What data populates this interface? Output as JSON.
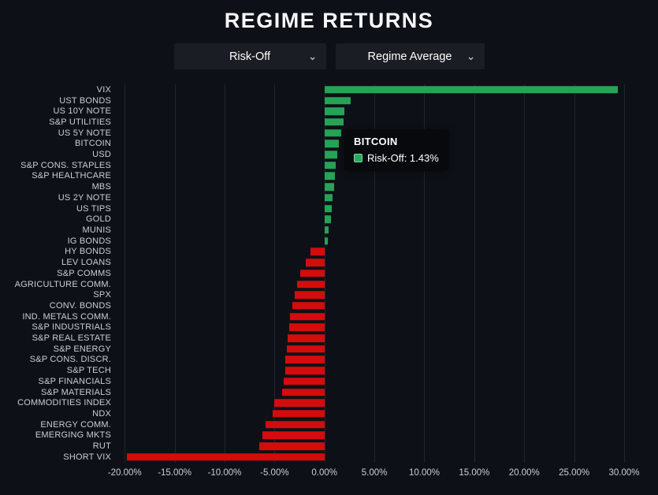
{
  "header": {
    "title": "REGIME RETURNS"
  },
  "controls": {
    "regime_dropdown": {
      "value": "Risk-Off"
    },
    "metric_dropdown": {
      "value": "Regime Average"
    }
  },
  "tooltip": {
    "title": "BITCOIN",
    "text": "Risk-Off: 1.43%"
  },
  "colors": {
    "background": "#0d1117",
    "positive_bar": "#26a356",
    "negative_bar": "#d40c0c",
    "gridline": "#21252c",
    "axis_text": "#c9ced6",
    "tooltip_swatch": "#2aa85c",
    "tooltip_swatch_border": "#7cd9a3"
  },
  "chart_data": {
    "type": "bar",
    "orientation": "horizontal",
    "title": "REGIME RETURNS",
    "series_name": "Risk-Off",
    "xlabel": "",
    "ylabel": "",
    "grid": true,
    "xlim": [
      -20.65,
      33.0
    ],
    "highlighted_category": "BITCOIN",
    "highlighted_value_label": "1.43%",
    "categories": [
      "VIX",
      "UST BONDS",
      "US 10Y NOTE",
      "S&P UTILITIES",
      "US 5Y NOTE",
      "BITCOIN",
      "USD",
      "S&P CONS. STAPLES",
      "S&P HEALTHCARE",
      "MBS",
      "US 2Y NOTE",
      "US TIPS",
      "GOLD",
      "MUNIS",
      "IG BONDS",
      "HY BONDS",
      "LEV LOANS",
      "S&P COMMS",
      "AGRICULTURE COMM.",
      "SPX",
      "CONV. BONDS",
      "IND. METALS COMM.",
      "S&P INDUSTRIALS",
      "S&P REAL ESTATE",
      "S&P ENERGY",
      "S&P CONS. DISCR.",
      "S&P TECH",
      "S&P FINANCIALS",
      "S&P MATERIALS",
      "COMMODITIES INDEX",
      "NDX",
      "ENERGY COMM.",
      "EMERGING MKTS",
      "RUT",
      "SHORT VIX"
    ],
    "values": [
      29.4,
      2.6,
      2.0,
      1.9,
      1.7,
      1.43,
      1.25,
      1.12,
      1.05,
      0.95,
      0.85,
      0.72,
      0.62,
      0.45,
      0.35,
      -1.4,
      -1.9,
      -2.4,
      -2.75,
      -3.0,
      -3.2,
      -3.45,
      -3.55,
      -3.65,
      -3.8,
      -3.9,
      -3.95,
      -4.1,
      -4.2,
      -5.0,
      -5.2,
      -5.9,
      -6.2,
      -6.5,
      -19.8
    ],
    "x_ticks": [
      {
        "value": -20,
        "label": "-20.00%"
      },
      {
        "value": -15,
        "label": "-15.00%"
      },
      {
        "value": -10,
        "label": "-10.00%"
      },
      {
        "value": -5,
        "label": "-5.00%"
      },
      {
        "value": 0,
        "label": "0.00%"
      },
      {
        "value": 5,
        "label": "5.00%"
      },
      {
        "value": 10,
        "label": "10.00%"
      },
      {
        "value": 15,
        "label": "15.00%"
      },
      {
        "value": 20,
        "label": "20.00%"
      },
      {
        "value": 25,
        "label": "25.00%"
      },
      {
        "value": 30,
        "label": "30.00%"
      }
    ]
  }
}
